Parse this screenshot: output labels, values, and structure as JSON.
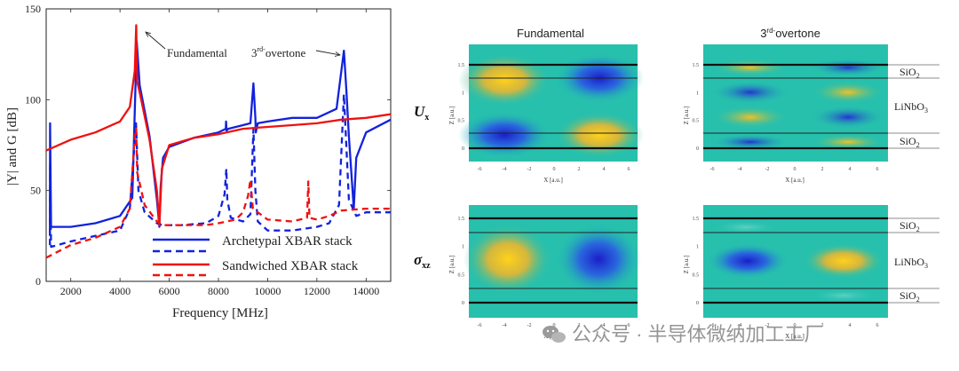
{
  "left_chart": {
    "ylabel": "|Y| and G [dB]",
    "xlabel": "Frequency [MHz]",
    "xticks": [
      "2000",
      "4000",
      "6000",
      "8000",
      "10000",
      "12000",
      "14000"
    ],
    "yticks": [
      "0",
      "50",
      "100",
      "150"
    ],
    "annot_fundamental": "Fundamental",
    "annot_overtone_num": "3",
    "annot_overtone_sup": "rd-",
    "annot_overtone_word": "overtone",
    "legend": {
      "archetypal": "Archetypal XBAR stack",
      "sandwiched": "Sandwiched XBAR stack"
    },
    "colors": {
      "archetypal": "#1122dd",
      "sandwiched": "#ee1111"
    }
  },
  "chart_data": {
    "type": "line",
    "title": "",
    "xlabel": "Frequency [MHz]",
    "ylabel": "|Y| and G [dB]",
    "xlim": [
      1000,
      15000
    ],
    "ylim": [
      0,
      150
    ],
    "series": [
      {
        "name": "Archetypal XBAR stack |Y|",
        "style": "solid",
        "color": "#1122dd",
        "x": [
          1150,
          1160,
          1200,
          2000,
          3000,
          4000,
          4500,
          4680,
          4800,
          5200,
          5500,
          5600,
          5650,
          5750,
          6000,
          7000,
          8000,
          8300,
          8310,
          8330,
          8400,
          9000,
          9300,
          9420,
          9500,
          9520,
          9600,
          10000,
          11000,
          12000,
          12800,
          13100,
          13200,
          13300,
          13500,
          13600,
          14000,
          15000
        ],
        "y": [
          25,
          87,
          30,
          30,
          32,
          36,
          46,
          132,
          108,
          80,
          45,
          30,
          52,
          68,
          74,
          79,
          82,
          84,
          88,
          83,
          84,
          86,
          87,
          109,
          90,
          82,
          87,
          88,
          90,
          90,
          95,
          127,
          105,
          80,
          40,
          68,
          82,
          89
        ]
      },
      {
        "name": "Archetypal XBAR stack G",
        "style": "dashed",
        "color": "#1122dd",
        "x": [
          1150,
          1160,
          1200,
          2000,
          3000,
          4000,
          4400,
          4650,
          4750,
          5000,
          5500,
          5700,
          6500,
          7500,
          8000,
          8250,
          8320,
          8360,
          8500,
          9000,
          9300,
          9420,
          9500,
          9600,
          10000,
          11000,
          12000,
          12500,
          12900,
          13100,
          13300,
          13600,
          14000,
          15000
        ],
        "y": [
          20,
          64,
          19,
          22,
          25,
          28,
          40,
          87,
          50,
          38,
          32,
          31,
          31,
          32,
          36,
          48,
          62,
          45,
          35,
          33,
          37,
          84,
          50,
          33,
          28,
          28,
          30,
          32,
          42,
          103,
          45,
          36,
          38,
          38
        ]
      },
      {
        "name": "Sandwiched XBAR stack |Y|",
        "style": "solid",
        "color": "#ee1111",
        "x": [
          1000,
          2000,
          3000,
          4000,
          4400,
          4600,
          4660,
          4700,
          4800,
          5200,
          5500,
          5600,
          5700,
          6000,
          7000,
          8000,
          9000,
          10000,
          11000,
          12000,
          13000,
          14000,
          15000
        ],
        "y": [
          72,
          78,
          82,
          88,
          96,
          116,
          141,
          110,
          104,
          78,
          50,
          31,
          62,
          75,
          79,
          81,
          84,
          85,
          86,
          87,
          89,
          90,
          92
        ]
      },
      {
        "name": "Sandwiched XBAR stack G",
        "style": "dashed",
        "color": "#ee1111",
        "x": [
          1000,
          2000,
          3000,
          4000,
          4400,
          4600,
          4660,
          4700,
          5000,
          5500,
          5700,
          6500,
          7500,
          8000,
          8700,
          9000,
          9200,
          9300,
          9400,
          10000,
          11000,
          11600,
          11650,
          11700,
          12000,
          12500,
          13000,
          14000,
          15000
        ],
        "y": [
          13,
          20,
          24,
          30,
          40,
          80,
          84,
          60,
          42,
          33,
          31,
          31,
          31,
          32,
          34,
          38,
          47,
          56,
          40,
          34,
          33,
          35,
          55,
          35,
          34,
          36,
          39,
          40,
          40
        ]
      }
    ]
  },
  "right_panel": {
    "col_fundamental": "Fundamental",
    "col_overtone_num": "3",
    "col_overtone_sup": "rd-",
    "col_overtone_word": "overtone",
    "row_ux_sym": "U",
    "row_ux_sub": "x",
    "row_sxz_sym": "σ",
    "row_sxz_sub": "xz",
    "zlabel": "Z [a.u.]",
    "xlabel": "X [a.u.]",
    "xticks": [
      "-6",
      "-4",
      "-2",
      "0",
      "2",
      "4",
      "6"
    ],
    "zticks": [
      "0",
      "0.5",
      "1",
      "1.5"
    ],
    "layer_top": "SiO",
    "layer_top_sub": "2",
    "layer_mid": "LiNbO",
    "layer_mid_sub": "3",
    "layer_bot": "SiO",
    "layer_bot_sub": "2"
  },
  "watermark": "公众号 · 半导体微纳加工工厂"
}
